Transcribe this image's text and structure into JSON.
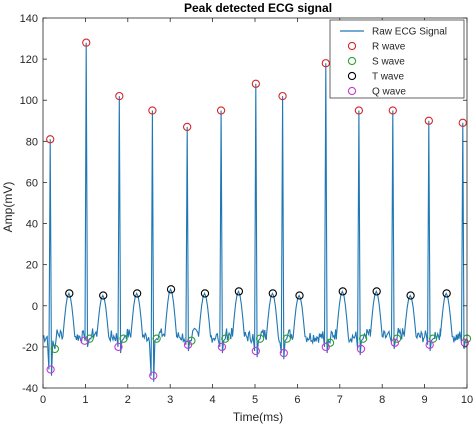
{
  "chart_data": {
    "type": "line",
    "title": "Peak detected ECG signal",
    "xlabel": "Time(ms)",
    "ylabel": "Amp(mV)",
    "xlim": [
      0,
      10
    ],
    "ylim": [
      -40,
      140
    ],
    "xticks": [
      0,
      1,
      2,
      3,
      4,
      5,
      6,
      7,
      8,
      9,
      10
    ],
    "yticks": [
      -40,
      -20,
      0,
      20,
      40,
      60,
      80,
      100,
      120,
      140
    ],
    "grid": false,
    "legend_position": "top-right",
    "series": [
      {
        "name": "Raw ECG Signal",
        "kind": "line",
        "color": "#1f77b4",
        "r_peaks": [
          {
            "x": 0.17,
            "y": 81
          },
          {
            "x": 1.02,
            "y": 128
          },
          {
            "x": 1.8,
            "y": 102
          },
          {
            "x": 2.58,
            "y": 95
          },
          {
            "x": 3.4,
            "y": 87
          },
          {
            "x": 4.2,
            "y": 95
          },
          {
            "x": 5.02,
            "y": 108
          },
          {
            "x": 5.65,
            "y": 102
          },
          {
            "x": 6.67,
            "y": 118
          },
          {
            "x": 7.45,
            "y": 95
          },
          {
            "x": 8.25,
            "y": 95
          },
          {
            "x": 9.1,
            "y": 90
          },
          {
            "x": 9.9,
            "y": 89
          }
        ],
        "baseline": -15,
        "noise_amplitude": 3
      },
      {
        "name": "R wave",
        "kind": "marker",
        "color": "#d62728",
        "x": [
          0.17,
          1.02,
          1.8,
          2.58,
          3.4,
          4.2,
          5.02,
          5.65,
          6.67,
          7.45,
          8.25,
          9.1,
          9.9
        ],
        "y": [
          81,
          128,
          102,
          95,
          87,
          95,
          108,
          102,
          118,
          95,
          95,
          90,
          89
        ]
      },
      {
        "name": "S wave",
        "kind": "marker",
        "color": "#2ca02c",
        "x": [
          0.28,
          1.1,
          1.9,
          2.68,
          3.5,
          4.3,
          5.12,
          5.75,
          6.77,
          7.55,
          8.35,
          9.2,
          10.0
        ],
        "y": [
          -21,
          -16,
          -16,
          -16,
          -17,
          -16,
          -16,
          -16,
          -18,
          -16,
          -16,
          -16,
          -16
        ]
      },
      {
        "name": "T wave",
        "kind": "marker",
        "color": "#000000",
        "x": [
          0.62,
          1.42,
          2.22,
          3.02,
          3.82,
          4.62,
          5.42,
          6.05,
          7.07,
          7.87,
          8.67,
          9.52
        ],
        "y": [
          6,
          5,
          6,
          8,
          6,
          7,
          6,
          5,
          7,
          7,
          5,
          6
        ]
      },
      {
        "name": "Q wave",
        "kind": "marker",
        "color": "#c43bd1",
        "x": [
          0.18,
          0.98,
          1.78,
          2.6,
          3.42,
          4.22,
          5.02,
          5.68,
          6.67,
          7.5,
          8.3,
          9.12,
          9.95
        ],
        "y": [
          -31,
          -17,
          -20,
          -34,
          -19,
          -20,
          -22,
          -23,
          -20,
          -21,
          -18,
          -19,
          -18
        ]
      }
    ]
  }
}
